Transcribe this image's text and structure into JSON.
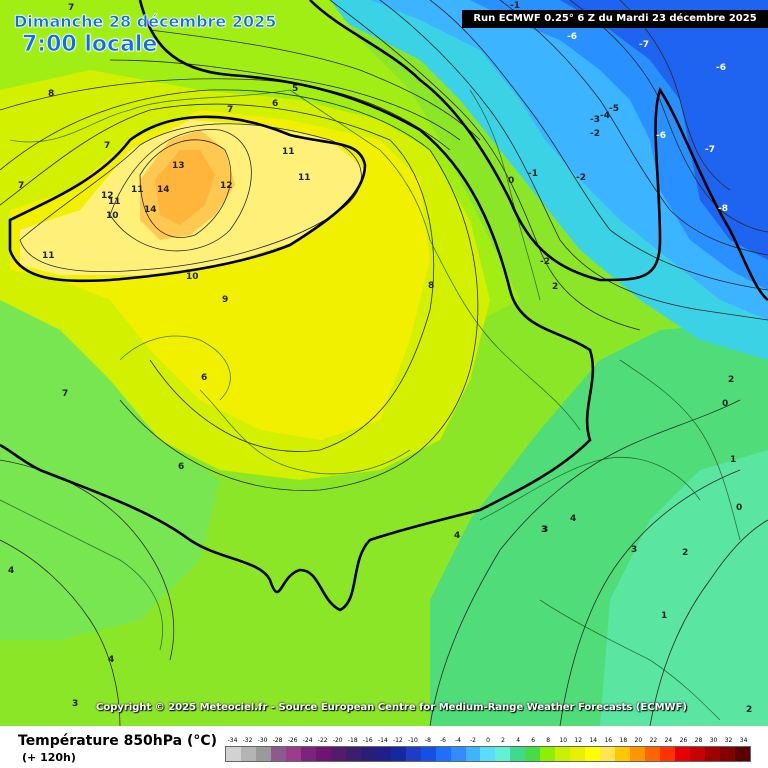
{
  "header": {
    "date": "Dimanche 28 décembre 2025",
    "time": "7:00 locale",
    "run": "Run ECMWF 0.25° 6 Z du Mardi 23 décembre 2025"
  },
  "credit": "Copyright © 2025 Meteociel.fr - Source European Centre for Medium-Range Weather Forecasts (ECMWF)",
  "legend": {
    "title": "Température 850hPa (°C)",
    "subtitle": "(+ 120h)",
    "ticks": [
      "-34",
      "-32",
      "-30",
      "-28",
      "-26",
      "-24",
      "-22",
      "-20",
      "-18",
      "-16",
      "-14",
      "-12",
      "-10",
      "-8",
      "-6",
      "-4",
      "-2",
      "0",
      "2",
      "4",
      "6",
      "8",
      "10",
      "12",
      "14",
      "16",
      "18",
      "20",
      "22",
      "24",
      "26",
      "28",
      "30",
      "32",
      "34"
    ],
    "colors": [
      "#d2d2d2",
      "#b4b4b4",
      "#9a9a9a",
      "#8c5a8c",
      "#9b3c8c",
      "#7d237d",
      "#6e1473",
      "#55196e",
      "#3c1e6e",
      "#281e78",
      "#1e1e8c",
      "#1428a0",
      "#1e3cc8",
      "#1450e6",
      "#1e6eff",
      "#328cff",
      "#3cb4ff",
      "#5adcff",
      "#64f0d2",
      "#3cdc8c",
      "#46dc46",
      "#8cf000",
      "#c8f000",
      "#e6f000",
      "#ffff00",
      "#ffe650",
      "#ffc800",
      "#ff9600",
      "#ff6400",
      "#ff3200",
      "#e60000",
      "#c80000",
      "#a00000",
      "#820000",
      "#5a0000"
    ]
  },
  "map": {
    "contour_labels": [
      {
        "text": "8"
      },
      {
        "text": "7"
      },
      {
        "text": "7"
      },
      {
        "text": "7"
      },
      {
        "text": "7"
      },
      {
        "text": "6"
      },
      {
        "text": "5"
      },
      {
        "text": "11"
      },
      {
        "text": "13"
      },
      {
        "text": "12"
      },
      {
        "text": "14"
      },
      {
        "text": "14"
      },
      {
        "text": "12"
      },
      {
        "text": "11"
      },
      {
        "text": "11"
      },
      {
        "text": "10"
      },
      {
        "text": "11"
      },
      {
        "text": "11"
      },
      {
        "text": "10"
      },
      {
        "text": "9"
      },
      {
        "text": "8"
      },
      {
        "text": "7"
      },
      {
        "text": "6"
      },
      {
        "text": "6"
      },
      {
        "text": "4"
      },
      {
        "text": "4"
      },
      {
        "text": "3"
      },
      {
        "text": "4"
      },
      {
        "text": "4"
      },
      {
        "text": "3"
      },
      {
        "text": "3"
      },
      {
        "text": "2"
      },
      {
        "text": "2"
      },
      {
        "text": "1"
      },
      {
        "text": "1"
      },
      {
        "text": "0"
      },
      {
        "text": "0"
      },
      {
        "text": "0"
      },
      {
        "text": "-1"
      },
      {
        "text": "-2"
      },
      {
        "text": "-2"
      },
      {
        "text": "-3"
      },
      {
        "text": "-4"
      },
      {
        "text": "-5"
      },
      {
        "text": "-6"
      },
      {
        "text": "-6"
      },
      {
        "text": "-7"
      },
      {
        "text": "-7"
      },
      {
        "text": "-8"
      },
      {
        "text": "-6"
      },
      {
        "text": "-1"
      },
      {
        "text": "-2"
      },
      {
        "text": "2"
      },
      {
        "text": "3"
      },
      {
        "text": "2"
      }
    ]
  }
}
